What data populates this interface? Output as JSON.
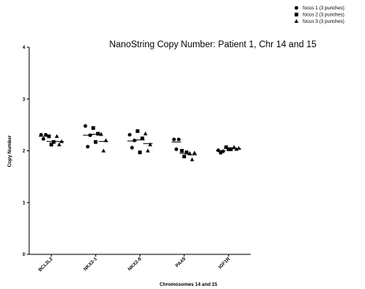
{
  "chart_data": {
    "type": "scatter",
    "title": "NanoString Copy Number: Patient 1, Chr 14 and 15",
    "xlabel": "Chromosomes 14 and 15",
    "ylabel": "Copy Number",
    "ylim": [
      0,
      4
    ],
    "yticks": [
      "0",
      "1",
      "2",
      "3",
      "4"
    ],
    "categories": [
      "BCL2L2",
      "NKX2-1",
      "NKX2-8",
      "PAX9",
      "IGF1R"
    ],
    "legend_position": "top-right",
    "series": [
      {
        "name": "focus 1 (3 punches)",
        "marker": "circle",
        "points": [
          [
            2.31,
            2.23,
            2.31
          ],
          [
            2.48,
            2.08,
            2.3
          ],
          [
            2.31,
            2.06,
            2.2
          ],
          [
            2.22,
            2.03,
            2.22
          ],
          [
            2.01,
            1.96,
            1.99
          ]
        ],
        "medians": [
          2.28,
          2.3,
          2.19,
          2.17,
          2.0
        ]
      },
      {
        "name": "focus 2 (3 punches)",
        "marker": "square",
        "points": [
          [
            2.28,
            2.12,
            2.17
          ],
          [
            2.44,
            2.17,
            2.33
          ],
          [
            2.38,
            1.97,
            2.24
          ],
          [
            2.0,
            1.89,
            1.97
          ],
          [
            2.07,
            2.03,
            2.03
          ]
        ],
        "medians": [
          2.18,
          2.32,
          2.21,
          1.95,
          2.05
        ]
      },
      {
        "name": "focus 3 (3 punches)",
        "marker": "triangle",
        "points": [
          [
            2.28,
            2.12,
            2.18
          ],
          [
            2.32,
            2.0,
            2.2
          ],
          [
            2.33,
            2.0,
            2.12
          ],
          [
            1.95,
            1.83,
            1.96
          ],
          [
            2.07,
            2.03,
            2.05
          ]
        ],
        "medians": [
          2.18,
          2.18,
          2.14,
          1.92,
          2.04
        ]
      }
    ],
    "colors": {
      "marker": "#000000",
      "axis": "#000000"
    }
  }
}
